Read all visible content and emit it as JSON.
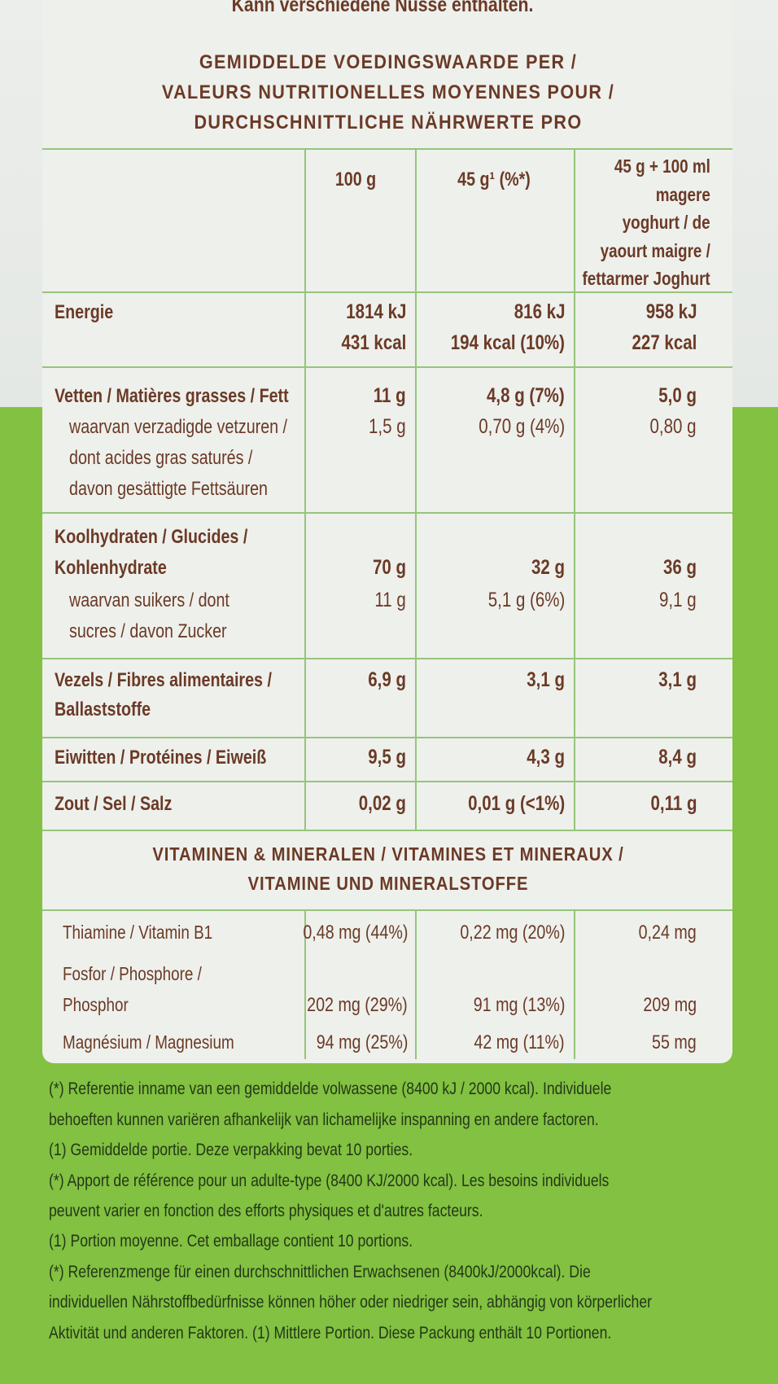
{
  "top_note": "Kann verschiedene Nüsse enthalten.",
  "heading": [
    "GEMIDDELDE VOEDINGSWAARDE PER /",
    "VALEURS NUTRITIONELLES MOYENNES POUR /",
    "DURCHSCHNITTLICHE NÄHRWERTE PRO"
  ],
  "table": {
    "columns": [
      [
        "100 g"
      ],
      [
        "45 g¹ (%*)"
      ],
      [
        "45 g + 100 ml",
        "magere",
        "yoghurt / de",
        "yaourt maigre /",
        "fettarmer Joghurt"
      ]
    ],
    "rows": [
      {
        "label": [
          "Energie"
        ],
        "values": [
          [
            "1814 kJ",
            "431 kcal"
          ],
          [
            "816 kJ",
            "194 kcal (10%)"
          ],
          [
            "958 kJ",
            "227 kcal"
          ]
        ]
      },
      {
        "label": [
          "Vetten / Matières grasses / Fett"
        ],
        "values": [
          [
            "11 g"
          ],
          [
            "4,8 g (7%)"
          ],
          [
            "5,0 g"
          ]
        ],
        "sub": {
          "label": [
            "waarvan verzadigde vetzuren /",
            "dont acides gras saturés /",
            "davon gesättigte Fettsäuren"
          ],
          "values": [
            [
              "1,5 g"
            ],
            [
              "0,70 g (4%)"
            ],
            [
              "0,80 g"
            ]
          ]
        }
      },
      {
        "label": [
          "Koolhydraten / Glucides /",
          "Kohlenhydrate"
        ],
        "values": [
          [
            "70 g"
          ],
          [
            "32 g"
          ],
          [
            "36 g"
          ]
        ],
        "sub": {
          "label": [
            "waarvan suikers / dont",
            "sucres / davon Zucker"
          ],
          "values": [
            [
              "11 g"
            ],
            [
              "5,1 g (6%)"
            ],
            [
              "9,1 g"
            ]
          ]
        }
      },
      {
        "label": [
          "Vezels / Fibres alimentaires /",
          "Ballaststoffe"
        ],
        "values": [
          [
            "6,9 g"
          ],
          [
            "3,1 g"
          ],
          [
            "3,1 g"
          ]
        ]
      },
      {
        "label": [
          "Eiwitten / Protéines / Eiweiß"
        ],
        "values": [
          [
            "9,5 g"
          ],
          [
            "4,3 g"
          ],
          [
            "8,4 g"
          ]
        ]
      },
      {
        "label": [
          "Zout / Sel / Salz"
        ],
        "values": [
          [
            "0,02 g"
          ],
          [
            "0,01 g (<1%)"
          ],
          [
            "0,11 g"
          ]
        ]
      }
    ]
  },
  "vitamins": {
    "heading": [
      "VITAMINEN & MINERALEN / VITAMINES ET MINERAUX /",
      "VITAMINE UND MINERALSTOFFE"
    ],
    "rows": [
      {
        "label": [
          "Thiamine / Vitamin B1"
        ],
        "values": [
          "0,48 mg (44%)",
          "0,22 mg (20%)",
          "0,24 mg"
        ]
      },
      {
        "label": [
          "Fosfor / Phosphore /",
          "Phosphor"
        ],
        "values": [
          "202 mg (29%)",
          "91 mg (13%)",
          "209 mg"
        ]
      },
      {
        "label": [
          "Magnésium / Magnesium"
        ],
        "values": [
          "94 mg (25%)",
          "42 mg (11%)",
          "55 mg"
        ]
      }
    ]
  },
  "footnotes": [
    "(*) Referentie inname van een gemiddelde volwassene (8400 kJ / 2000 kcal). Individuele",
    "behoeften kunnen variëren afhankelijk van lichamelijke inspanning en andere factoren.",
    "(1) Gemiddelde portie. Deze verpakking bevat 10 porties.",
    "(*) Apport de référence pour un adulte-type (8400 KJ/2000 kcal). Les besoins individuels",
    "peuvent varier en fonction des efforts physiques et d'autres facteurs.",
    "(1) Portion moyenne. Cet emballage contient 10 portions.",
    "(*) Referenzmenge für einen durchschnittlichen Erwachsenen (8400kJ/2000kcal). Die",
    "individuellen Nährstoffbedürfnisse können höher oder niedriger sein, abhängig von körperlicher",
    "Aktivität und anderen Faktoren. (1) Mittlere Portion. Diese Packung enthält 10 Portionen."
  ]
}
